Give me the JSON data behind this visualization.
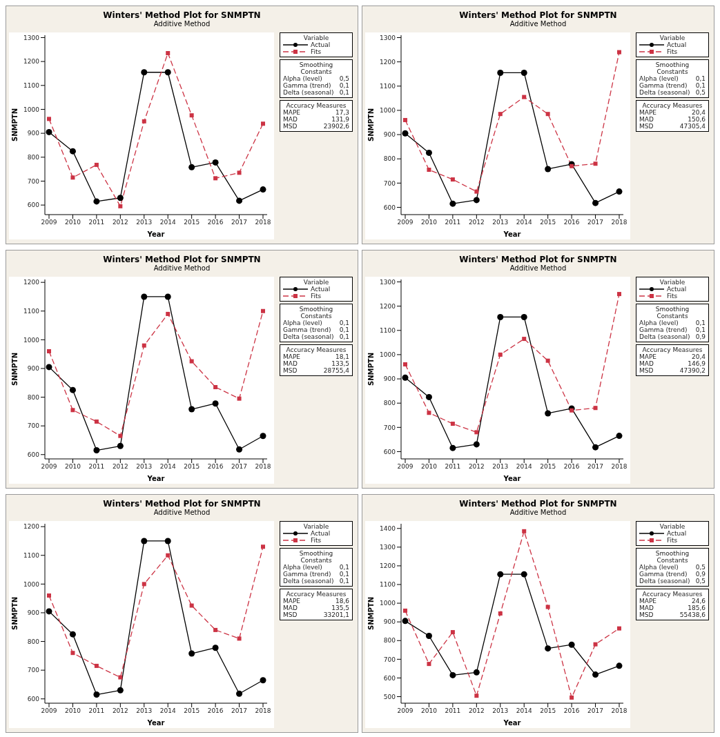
{
  "chart_data": [
    {
      "type": "line",
      "title": "Winters' Method Plot for SNMPTN",
      "subtitle": "Additive Method",
      "xlabel": "Year",
      "ylabel": "SNMPTN",
      "legend_title": "Variable",
      "legend": "right",
      "grid": false,
      "categories": [
        "2009",
        "2010",
        "2011",
        "2012",
        "2013",
        "2014",
        "2015",
        "2016",
        "2017",
        "2018"
      ],
      "ylim": [
        560,
        1310
      ],
      "yticks": [
        600,
        700,
        800,
        900,
        1000,
        1100,
        1200,
        1300
      ],
      "series": [
        {
          "name": "Actual",
          "color": "#000000",
          "marker": "circle",
          "line_style": "solid",
          "values": [
            905,
            825,
            615,
            630,
            1155,
            1155,
            758,
            778,
            618,
            665
          ]
        },
        {
          "name": "Fits",
          "color": "#cc3344",
          "marker": "square",
          "line_style": "dashed",
          "values": [
            960,
            715,
            768,
            595,
            950,
            1235,
            975,
            712,
            735,
            940
          ]
        }
      ],
      "annotations": [
        "Smoothing Constants",
        "Alpha (level)",
        "0,5",
        "Gamma (trend)",
        "0,1",
        "Delta (seasonal)",
        "0,1",
        "Accuracy Measures",
        "MAPE",
        "17,3",
        "MAD",
        "131,9",
        "MSD",
        "23902,6"
      ]
    },
    {
      "type": "line",
      "title": "Winters' Method Plot for SNMPTN",
      "subtitle": "Additive Method",
      "xlabel": "Year",
      "ylabel": "SNMPTN",
      "legend_title": "Variable",
      "legend": "right",
      "grid": false,
      "categories": [
        "2009",
        "2010",
        "2011",
        "2012",
        "2013",
        "2014",
        "2015",
        "2016",
        "2017",
        "2018"
      ],
      "ylim": [
        570,
        1310
      ],
      "yticks": [
        600,
        700,
        800,
        900,
        1000,
        1100,
        1200,
        1300
      ],
      "series": [
        {
          "name": "Actual",
          "color": "#000000",
          "marker": "circle",
          "line_style": "solid",
          "values": [
            905,
            825,
            615,
            630,
            1155,
            1155,
            758,
            778,
            618,
            665
          ]
        },
        {
          "name": "Fits",
          "color": "#cc3344",
          "marker": "square",
          "line_style": "dashed",
          "values": [
            960,
            755,
            715,
            665,
            985,
            1055,
            985,
            770,
            780,
            1240
          ]
        }
      ],
      "annotations": [
        "Smoothing Constants",
        "Alpha (level)",
        "0,1",
        "Gamma (trend)",
        "0,1",
        "Delta (seasonal)",
        "0,5",
        "Accuracy Measures",
        "MAPE",
        "20,4",
        "MAD",
        "150,6",
        "MSD",
        "47305,4"
      ]
    },
    {
      "type": "line",
      "title": "Winters' Method Plot for SNMPTN",
      "subtitle": "Additive Method",
      "xlabel": "Year",
      "ylabel": "SNMPTN",
      "legend_title": "Variable",
      "legend": "right",
      "grid": false,
      "categories": [
        "2009",
        "2010",
        "2011",
        "2012",
        "2013",
        "2014",
        "2015",
        "2016",
        "2017",
        "2018"
      ],
      "ylim": [
        585,
        1210
      ],
      "yticks": [
        600,
        700,
        800,
        900,
        1000,
        1100,
        1200
      ],
      "series": [
        {
          "name": "Actual",
          "color": "#000000",
          "marker": "circle",
          "line_style": "solid",
          "values": [
            905,
            825,
            615,
            630,
            1150,
            1150,
            758,
            778,
            618,
            665
          ]
        },
        {
          "name": "Fits",
          "color": "#cc3344",
          "marker": "square",
          "line_style": "dashed",
          "values": [
            960,
            755,
            715,
            665,
            980,
            1090,
            925,
            835,
            795,
            1100
          ]
        }
      ],
      "annotations": [
        "Smoothing Constants",
        "Alpha (level)",
        "0,1",
        "Gamma (trend)",
        "0,1",
        "Delta (seasonal)",
        "0,1",
        "Accuracy Measures",
        "MAPE",
        "18,1",
        "MAD",
        "133,5",
        "MSD",
        "28755,4"
      ]
    },
    {
      "type": "line",
      "title": "Winters' Method Plot for SNMPTN",
      "subtitle": "Additive Method",
      "xlabel": "Year",
      "ylabel": "SNMPTN",
      "legend_title": "Variable",
      "legend": "right",
      "grid": false,
      "categories": [
        "2009",
        "2010",
        "2011",
        "2012",
        "2013",
        "2014",
        "2015",
        "2016",
        "2017",
        "2018"
      ],
      "ylim": [
        570,
        1310
      ],
      "yticks": [
        600,
        700,
        800,
        900,
        1000,
        1100,
        1200,
        1300
      ],
      "series": [
        {
          "name": "Actual",
          "color": "#000000",
          "marker": "circle",
          "line_style": "solid",
          "values": [
            905,
            825,
            615,
            630,
            1155,
            1155,
            758,
            778,
            618,
            665
          ]
        },
        {
          "name": "Fits",
          "color": "#cc3344",
          "marker": "square",
          "line_style": "dashed",
          "values": [
            960,
            760,
            715,
            680,
            1000,
            1065,
            975,
            770,
            780,
            1250
          ]
        }
      ],
      "annotations": [
        "Smoothing Constants",
        "Alpha (level)",
        "0,1",
        "Gamma (trend)",
        "0,1",
        "Delta (seasonal)",
        "0,9",
        "Accuracy Measures",
        "MAPE",
        "20,4",
        "MAD",
        "146,9",
        "MSD",
        "47390,2"
      ]
    },
    {
      "type": "line",
      "title": "Winters' Method Plot for SNMPTN",
      "subtitle": "Additive Method",
      "xlabel": "Year",
      "ylabel": "SNMPTN",
      "legend_title": "Variable",
      "legend": "right",
      "grid": false,
      "categories": [
        "2009",
        "2010",
        "2011",
        "2012",
        "2013",
        "2014",
        "2015",
        "2016",
        "2017",
        "2018"
      ],
      "ylim": [
        585,
        1210
      ],
      "yticks": [
        600,
        700,
        800,
        900,
        1000,
        1100,
        1200
      ],
      "series": [
        {
          "name": "Actual",
          "color": "#000000",
          "marker": "circle",
          "line_style": "solid",
          "values": [
            905,
            825,
            615,
            630,
            1150,
            1150,
            758,
            778,
            618,
            665
          ]
        },
        {
          "name": "Fits",
          "color": "#cc3344",
          "marker": "square",
          "line_style": "dashed",
          "values": [
            960,
            760,
            715,
            675,
            1000,
            1100,
            925,
            840,
            810,
            1130
          ]
        }
      ],
      "annotations": [
        "Smoothing Constants",
        "Alpha (level)",
        "0,1",
        "Gamma (trend)",
        "0,1",
        "Delta (seasonal)",
        "0,1",
        "Accuracy Measures",
        "MAPE",
        "18,6",
        "MAD",
        "135,5",
        "MSD",
        "33201,1"
      ]
    },
    {
      "type": "line",
      "title": "Winters' Method Plot for SNMPTN",
      "subtitle": "Additive Method",
      "xlabel": "Year",
      "ylabel": "SNMPTN",
      "legend_title": "Variable",
      "legend": "right",
      "grid": false,
      "categories": [
        "2009",
        "2010",
        "2011",
        "2012",
        "2013",
        "2014",
        "2015",
        "2016",
        "2017",
        "2018"
      ],
      "ylim": [
        465,
        1425
      ],
      "yticks": [
        500,
        600,
        700,
        800,
        900,
        1000,
        1100,
        1200,
        1300,
        1400
      ],
      "series": [
        {
          "name": "Actual",
          "color": "#000000",
          "marker": "circle",
          "line_style": "solid",
          "values": [
            905,
            825,
            615,
            630,
            1155,
            1155,
            758,
            778,
            618,
            665
          ]
        },
        {
          "name": "Fits",
          "color": "#cc3344",
          "marker": "square",
          "line_style": "dashed",
          "values": [
            960,
            675,
            845,
            505,
            945,
            1385,
            980,
            495,
            780,
            865
          ]
        }
      ],
      "annotations": [
        "Smoothing Constants",
        "Alpha (level)",
        "0,5",
        "Gamma (trend)",
        "0,9",
        "Delta (seasonal)",
        "0,5",
        "Accuracy Measures",
        "MAPE",
        "24,6",
        "MAD",
        "185,6",
        "MSD",
        "55438,6"
      ]
    }
  ]
}
